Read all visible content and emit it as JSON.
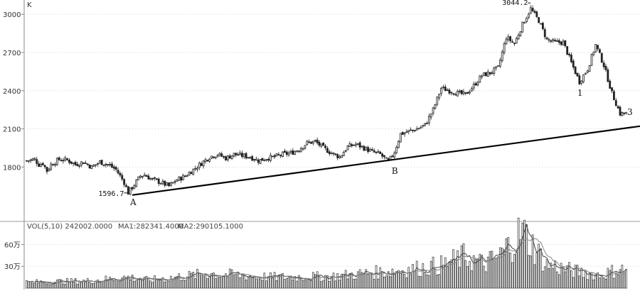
{
  "chart_data": [
    {
      "type": "candlestick",
      "panel": "price",
      "corner_label": "K",
      "ylim": [
        1395,
        3090
      ],
      "y_ticks": [
        1800,
        2100,
        2400,
        2700,
        3000
      ],
      "y_tick_labels": [
        "1800",
        "2100",
        "2400",
        "2700",
        "3000"
      ],
      "grid": "horizontal-dotted",
      "anchors": [
        [
          0,
          1850
        ],
        [
          4,
          1860
        ],
        [
          6,
          1820
        ],
        [
          8,
          1830
        ],
        [
          10,
          1770
        ],
        [
          12,
          1820
        ],
        [
          16,
          1860
        ],
        [
          20,
          1855
        ],
        [
          24,
          1820
        ],
        [
          28,
          1840
        ],
        [
          32,
          1800
        ],
        [
          36,
          1840
        ],
        [
          40,
          1820
        ],
        [
          44,
          1780
        ],
        [
          48,
          1680
        ],
        [
          50,
          1598
        ],
        [
          52,
          1640
        ],
        [
          56,
          1730
        ],
        [
          58,
          1740
        ],
        [
          62,
          1700
        ],
        [
          66,
          1680
        ],
        [
          70,
          1650
        ],
        [
          74,
          1700
        ],
        [
          78,
          1730
        ],
        [
          82,
          1780
        ],
        [
          86,
          1830
        ],
        [
          90,
          1880
        ],
        [
          94,
          1900
        ],
        [
          98,
          1870
        ],
        [
          102,
          1900
        ],
        [
          106,
          1890
        ],
        [
          110,
          1880
        ],
        [
          114,
          1850
        ],
        [
          118,
          1870
        ],
        [
          122,
          1880
        ],
        [
          126,
          1900
        ],
        [
          130,
          1910
        ],
        [
          134,
          1940
        ],
        [
          138,
          1990
        ],
        [
          142,
          2000
        ],
        [
          146,
          1950
        ],
        [
          150,
          1910
        ],
        [
          154,
          1880
        ],
        [
          158,
          1960
        ],
        [
          162,
          1980
        ],
        [
          166,
          1950
        ],
        [
          170,
          1920
        ],
        [
          174,
          1900
        ],
        [
          178,
          1840
        ],
        [
          181,
          1920
        ],
        [
          184,
          2060
        ],
        [
          188,
          2080
        ],
        [
          192,
          2100
        ],
        [
          196,
          2130
        ],
        [
          200,
          2250
        ],
        [
          204,
          2420
        ],
        [
          208,
          2400
        ],
        [
          212,
          2380
        ],
        [
          216,
          2370
        ],
        [
          220,
          2440
        ],
        [
          224,
          2520
        ],
        [
          228,
          2540
        ],
        [
          232,
          2580
        ],
        [
          236,
          2820
        ],
        [
          240,
          2770
        ],
        [
          244,
          2920
        ],
        [
          248,
          3044
        ],
        [
          252,
          2950
        ],
        [
          256,
          2800
        ],
        [
          260,
          2780
        ],
        [
          264,
          2780
        ],
        [
          268,
          2620
        ],
        [
          272,
          2470
        ],
        [
          276,
          2570
        ],
        [
          280,
          2760
        ],
        [
          284,
          2600
        ],
        [
          288,
          2380
        ],
        [
          292,
          2220
        ]
      ],
      "overlay_line": {
        "from": {
          "x": 52,
          "y": 1580
        },
        "to": {
          "x": 306,
          "y": 2130
        },
        "label": "trend line"
      },
      "annotations": [
        {
          "text": "1596.7",
          "x": 50,
          "y": 1596.7,
          "kind": "price-low"
        },
        {
          "text": "3044.2",
          "x": 248,
          "y": 3044.2,
          "kind": "price-high"
        },
        {
          "text": "A",
          "x": 52,
          "y": 1580,
          "kind": "point"
        },
        {
          "text": "B",
          "x": 181,
          "y": 1840,
          "kind": "point"
        },
        {
          "text": "1",
          "x": 272,
          "y": 2470,
          "kind": "point"
        },
        {
          "text": "3",
          "x": 292,
          "y": 2220,
          "kind": "point"
        }
      ],
      "colors": {
        "candle": "#222222",
        "trend": "#000000",
        "grid": "#cccccc"
      }
    },
    {
      "type": "bar",
      "panel": "volume",
      "legend": {
        "vol": "VOL(5,10) 242002.0000",
        "ma1": "MA1:282341.4000",
        "ma2": "MA2:290105.1000"
      },
      "ylim": [
        0,
        780000
      ],
      "y_ticks": [
        300000,
        600000
      ],
      "y_tick_labels": [
        "30万",
        "60万"
      ],
      "anchors": [
        [
          0,
          80000
        ],
        [
          30,
          100000
        ],
        [
          50,
          150000
        ],
        [
          60,
          110000
        ],
        [
          90,
          200000
        ],
        [
          120,
          150000
        ],
        [
          150,
          160000
        ],
        [
          170,
          210000
        ],
        [
          190,
          260000
        ],
        [
          205,
          320000
        ],
        [
          215,
          430000
        ],
        [
          225,
          330000
        ],
        [
          232,
          420000
        ],
        [
          238,
          610000
        ],
        [
          244,
          780000
        ],
        [
          248,
          620000
        ],
        [
          256,
          320000
        ],
        [
          270,
          230000
        ],
        [
          282,
          180000
        ],
        [
          292,
          260000
        ],
        [
          295,
          240000
        ]
      ],
      "ma_lines": [
        "MA1",
        "MA2"
      ],
      "colors": {
        "bar": "#333333",
        "ma1": "#444444",
        "ma2": "#888888"
      }
    }
  ]
}
